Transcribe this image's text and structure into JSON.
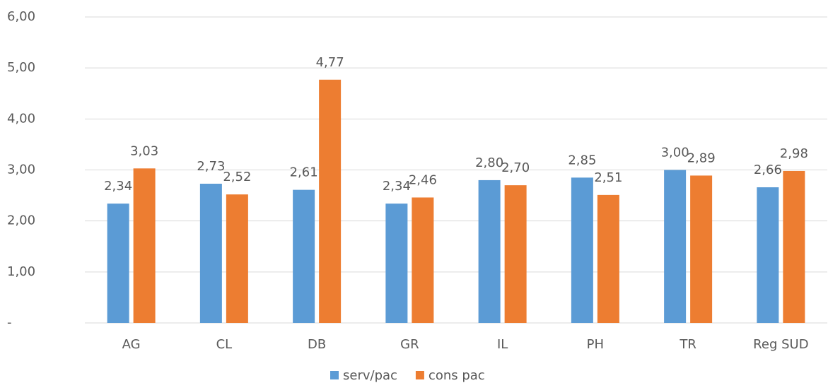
{
  "chart_data": {
    "type": "bar",
    "categories": [
      "AG",
      "CL",
      "DB",
      "GR",
      "IL",
      "PH",
      "TR",
      "Reg SUD"
    ],
    "series": [
      {
        "name": "serv/pac",
        "color": "#5b9bd5",
        "values": [
          2.34,
          2.73,
          2.61,
          2.34,
          2.8,
          2.85,
          3.0,
          2.66
        ],
        "value_labels": [
          "2,34",
          "2,73",
          "2,61",
          "2,34",
          "2,80",
          "2,85",
          "3,00",
          "2,66"
        ]
      },
      {
        "name": "cons pac",
        "color": "#ed7d31",
        "values": [
          3.03,
          2.52,
          4.77,
          2.46,
          2.7,
          2.51,
          2.89,
          2.98
        ],
        "value_labels": [
          "3,03",
          "2,52",
          "4,77",
          "2,46",
          "2,70",
          "2,51",
          "2,89",
          "2,98"
        ]
      }
    ],
    "ylim": [
      0,
      6
    ],
    "yticks": [
      {
        "value": 0,
        "label": "-"
      },
      {
        "value": 1,
        "label": "1,00"
      },
      {
        "value": 2,
        "label": "2,00"
      },
      {
        "value": 3,
        "label": "3,00"
      },
      {
        "value": 4,
        "label": "4,00"
      },
      {
        "value": 5,
        "label": "5,00"
      },
      {
        "value": 6,
        "label": "6,00"
      }
    ],
    "grid": true,
    "legend": "bottom"
  }
}
